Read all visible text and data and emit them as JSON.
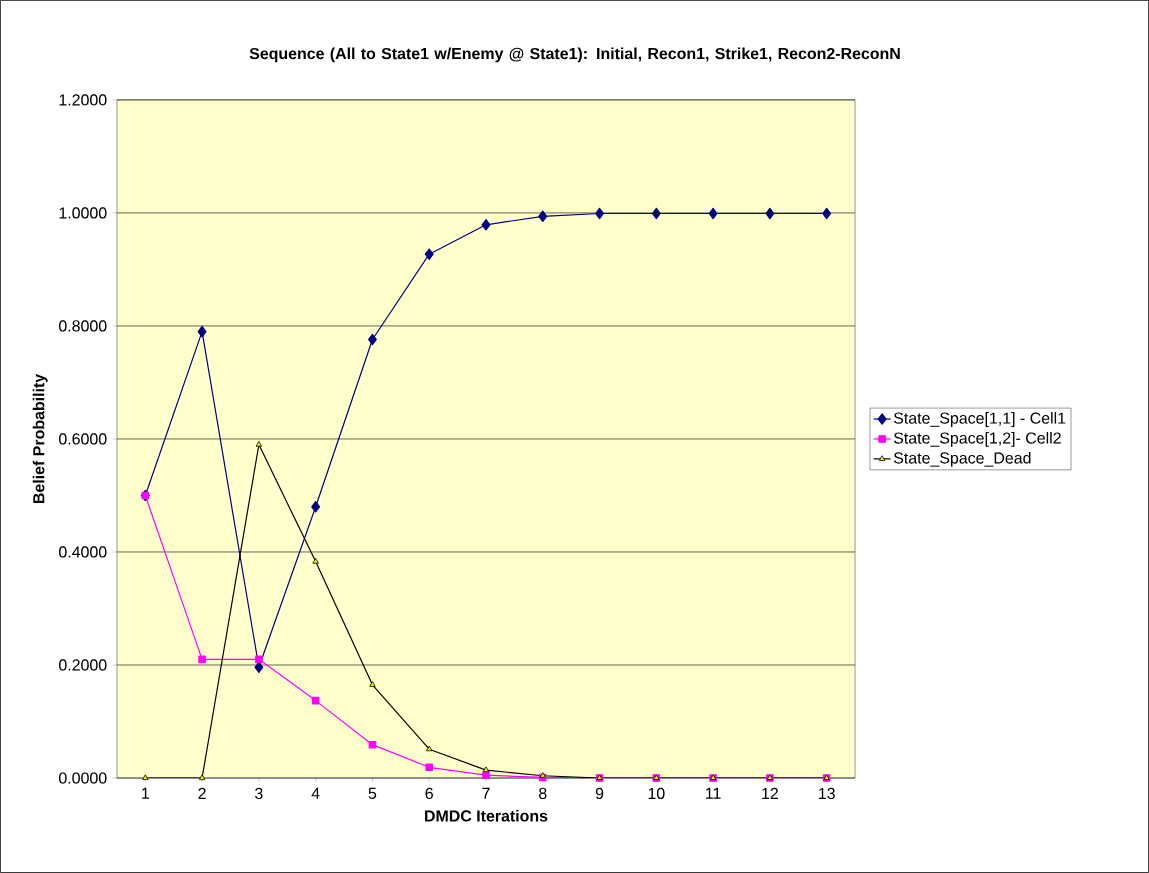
{
  "chart_data": {
    "type": "line",
    "title": "Sequence (All to State1 w/Enemy @ State1):  Initial, Recon1, Strike1, Recon2-ReconN",
    "xlabel": "DMDC Iterations",
    "ylabel": "Belief Probability",
    "categories": [
      "1",
      "2",
      "3",
      "4",
      "5",
      "6",
      "7",
      "8",
      "9",
      "10",
      "11",
      "12",
      "13"
    ],
    "series": [
      {
        "name": "State_Space[1,1] - Cell1",
        "color": "#000080",
        "marker": "diamond",
        "values": [
          0.5,
          0.79,
          0.196,
          0.48,
          0.776,
          0.927,
          0.979,
          0.994,
          0.999,
          0.999,
          0.999,
          0.999,
          0.999
        ]
      },
      {
        "name": "State_Space[1,2]-  Cell2",
        "color": "#ff00ff",
        "marker": "square",
        "values": [
          0.5,
          0.21,
          0.21,
          0.137,
          0.059,
          0.019,
          0.005,
          0.001,
          0,
          0,
          0,
          0,
          0
        ]
      },
      {
        "name": "State_Space_Dead",
        "color": "#000000",
        "marker": "triangle",
        "values": [
          0,
          0,
          0.59,
          0.383,
          0.165,
          0.051,
          0.014,
          0.004,
          0,
          0,
          0,
          0,
          0
        ]
      }
    ],
    "ylim": [
      0,
      1.2
    ],
    "yticks": [
      {
        "value": 0,
        "label": "0.0000"
      },
      {
        "value": 0.2,
        "label": "0.2000"
      },
      {
        "value": 0.4,
        "label": "0.4000"
      },
      {
        "value": 0.6,
        "label": "0.6000"
      },
      {
        "value": 0.8,
        "label": "0.8000"
      },
      {
        "value": 1.0,
        "label": "1.0000"
      },
      {
        "value": 1.2,
        "label": "1.2000"
      }
    ],
    "grid": "y",
    "legend": "right",
    "line_style": "solid"
  }
}
